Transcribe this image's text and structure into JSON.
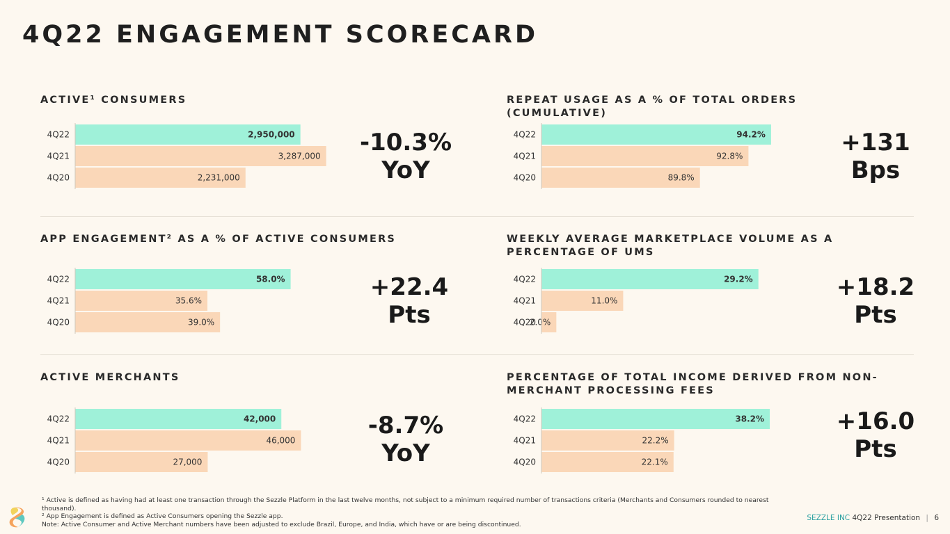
{
  "title": "4Q22 ENGAGEMENT SCORECARD",
  "colors": {
    "highlight": "#9ff1d9",
    "base": "#fad7b8",
    "axis": "#cfc8bc",
    "text": "#333333"
  },
  "chart_data": [
    {
      "type": "bar",
      "orientation": "horizontal",
      "title": "ACTIVE¹ CONSUMERS",
      "categories": [
        "4Q22",
        "4Q21",
        "4Q20"
      ],
      "values": [
        2950000,
        3287000,
        2231000
      ],
      "labels": [
        "2,950,000",
        "3,287,000",
        "2,231,000"
      ],
      "xlim": [
        0,
        3600000
      ],
      "callout": [
        "-10.3%",
        "YoY"
      ]
    },
    {
      "type": "bar",
      "orientation": "horizontal",
      "title": "REPEAT USAGE AS A % OF TOTAL ORDERS (CUMULATIVE)",
      "categories": [
        "4Q22",
        "4Q21",
        "4Q20"
      ],
      "values": [
        94.2,
        92.8,
        89.8
      ],
      "labels": [
        "94.2%",
        "92.8%",
        "89.8%"
      ],
      "xlim": [
        80,
        97
      ],
      "callout": [
        "+131",
        "Bps"
      ]
    },
    {
      "type": "bar",
      "orientation": "horizontal",
      "title": "APP ENGAGEMENT² AS A % OF ACTIVE CONSUMERS",
      "categories": [
        "4Q22",
        "4Q21",
        "4Q20"
      ],
      "values": [
        58.0,
        35.6,
        39.0
      ],
      "labels": [
        "58.0%",
        "35.6%",
        "39.0%"
      ],
      "xlim": [
        0,
        74
      ],
      "callout": [
        "+22.4",
        "Pts"
      ]
    },
    {
      "type": "bar",
      "orientation": "horizontal",
      "title": "WEEKLY AVERAGE MARKETPLACE VOLUME AS A PERCENTAGE OF UMS",
      "categories": [
        "4Q22",
        "4Q21",
        "4Q20"
      ],
      "values": [
        29.2,
        11.0,
        2.0
      ],
      "labels": [
        "29.2%",
        "11.0%",
        "2.0%"
      ],
      "xlim": [
        0,
        37
      ],
      "callout": [
        "+18.2",
        "Pts"
      ]
    },
    {
      "type": "bar",
      "orientation": "horizontal",
      "title": "ACTIVE MERCHANTS",
      "categories": [
        "4Q22",
        "4Q21",
        "4Q20"
      ],
      "values": [
        42000,
        46000,
        27000
      ],
      "labels": [
        "42,000",
        "46,000",
        "27,000"
      ],
      "xlim": [
        0,
        56000
      ],
      "callout": [
        "-8.7%",
        "YoY"
      ]
    },
    {
      "type": "bar",
      "orientation": "horizontal",
      "title": "PERCENTAGE OF TOTAL INCOME DERIVED FROM NON-MERCHANT PROCESSING FEES",
      "categories": [
        "4Q22",
        "4Q21",
        "4Q20"
      ],
      "values": [
        38.2,
        22.2,
        22.1
      ],
      "labels": [
        "38.2%",
        "22.2%",
        "22.1%"
      ],
      "xlim": [
        0,
        46
      ],
      "callout": [
        "+16.0",
        "Pts"
      ]
    }
  ],
  "footnotes": [
    "¹ Active is defined as having had at least one transaction through the Sezzle Platform in the last twelve months, not subject to a minimum required number of transactions criteria (Merchants and Consumers rounded to nearest thousand).",
    "² App Engagement is defined as Active Consumers opening the Sezzle app.",
    "Note: Active Consumer and Active Merchant numbers have been adjusted to exclude Brazil, Europe, and India, which have or are being discontinued."
  ],
  "footer": {
    "brand": "SEZZLE INC",
    "presentation": "4Q22 Presentation",
    "separator": "|",
    "page": "6"
  },
  "logo_icon": "sezzle-logo-icon"
}
